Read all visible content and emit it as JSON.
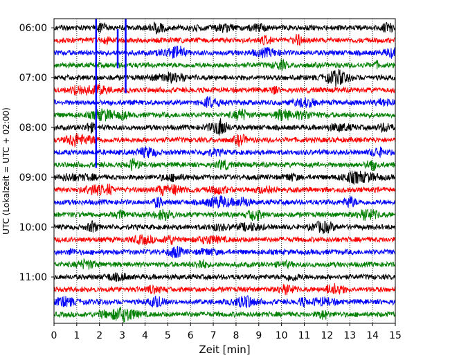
{
  "chart_data": {
    "type": "line",
    "title": "",
    "xlabel": "Zeit  [min]",
    "ylabel": "UTC (Lokalzeit = UTC + 02:00)",
    "xlim": [
      0,
      15
    ],
    "x_ticks": [
      "0",
      "1",
      "2",
      "3",
      "4",
      "5",
      "6",
      "7",
      "8",
      "9",
      "10",
      "11",
      "12",
      "13",
      "14",
      "15"
    ],
    "y_start": "06:00",
    "y_end": "11:45",
    "trace_interval_min": 15,
    "trace_count": 24,
    "y_ticks": [
      "06:00",
      "07:00",
      "08:00",
      "09:00",
      "10:00",
      "11:00"
    ],
    "vertical_grid": "dotted, every 1 min",
    "color_cycle": [
      "#000000",
      "#ff0000",
      "#0000ff",
      "#008000"
    ],
    "events": [
      {
        "trace_start": "06:00",
        "x_min": 1.85,
        "color": "#0000ff",
        "spans_to": "08:45"
      },
      {
        "trace_start": "06:00",
        "x_min": 3.15,
        "color": "#0000ff",
        "spans_to": "07:15"
      },
      {
        "trace_start": "06:15",
        "x_min": 2.8,
        "color": "#0000ff",
        "spans_to": "06:45"
      }
    ]
  }
}
